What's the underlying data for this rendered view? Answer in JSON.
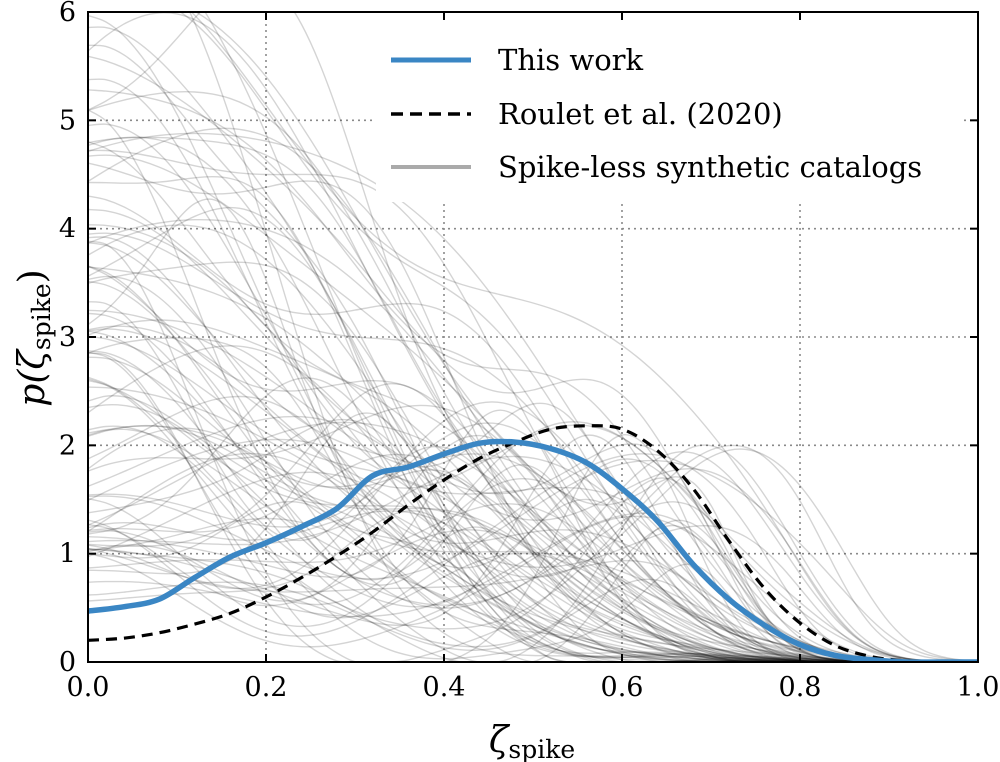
{
  "chart_data": {
    "type": "line",
    "title": "",
    "xlabel": "ζ",
    "xlabel_sub": "spike",
    "ylabel": "p(ζ",
    "ylabel_sub": "spike",
    "ylabel_close": ")",
    "xlim": [
      0.0,
      1.0
    ],
    "ylim": [
      0,
      6
    ],
    "xticks": [
      0.0,
      0.2,
      0.4,
      0.6,
      0.8,
      1.0
    ],
    "xtick_labels": [
      "0.0",
      "0.2",
      "0.4",
      "0.6",
      "0.8",
      "1.0"
    ],
    "yticks": [
      0,
      1,
      2,
      3,
      4,
      5,
      6
    ],
    "ytick_labels": [
      "0",
      "1",
      "2",
      "3",
      "4",
      "5",
      "6"
    ],
    "grid": true,
    "legend_position": "top-right",
    "series": [
      {
        "name": "This work",
        "style": "solid",
        "color": "#3a86c4",
        "x": [
          0.0,
          0.04,
          0.08,
          0.12,
          0.16,
          0.2,
          0.24,
          0.28,
          0.32,
          0.36,
          0.4,
          0.44,
          0.48,
          0.52,
          0.56,
          0.6,
          0.64,
          0.68,
          0.72,
          0.76,
          0.8,
          0.84,
          0.88,
          0.92,
          0.96,
          1.0
        ],
        "y": [
          0.47,
          0.51,
          0.58,
          0.78,
          0.97,
          1.1,
          1.25,
          1.42,
          1.72,
          1.8,
          1.92,
          2.02,
          2.03,
          1.97,
          1.84,
          1.6,
          1.3,
          0.9,
          0.58,
          0.34,
          0.16,
          0.06,
          0.02,
          0.0,
          0.0,
          0.0
        ]
      },
      {
        "name": "Roulet et al. (2020)",
        "style": "dashed",
        "color": "#000000",
        "x": [
          0.0,
          0.04,
          0.08,
          0.12,
          0.16,
          0.2,
          0.24,
          0.28,
          0.32,
          0.36,
          0.4,
          0.44,
          0.48,
          0.52,
          0.56,
          0.6,
          0.64,
          0.68,
          0.72,
          0.76,
          0.8,
          0.84,
          0.88,
          0.92,
          0.96,
          1.0
        ],
        "y": [
          0.2,
          0.22,
          0.27,
          0.35,
          0.45,
          0.6,
          0.78,
          0.98,
          1.2,
          1.45,
          1.68,
          1.88,
          2.03,
          2.15,
          2.18,
          2.15,
          1.95,
          1.6,
          1.12,
          0.68,
          0.36,
          0.15,
          0.05,
          0.01,
          0.0,
          0.0
        ]
      },
      {
        "name": "Spike-less synthetic catalogs",
        "style": "thin-gray",
        "color": "#888888",
        "count": 100,
        "y_at_zero_range": [
          0.7,
          6.5
        ]
      }
    ]
  }
}
